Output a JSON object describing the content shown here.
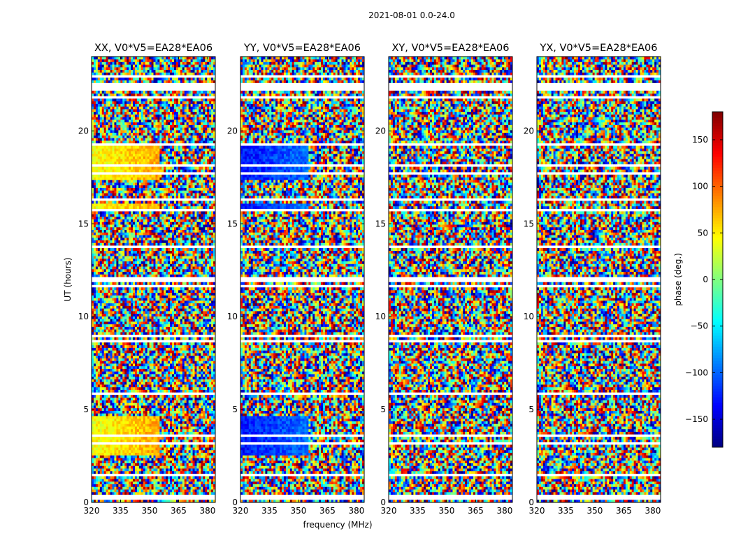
{
  "figure": {
    "suptitle": "2021-08-01 0.0-24.0",
    "xlabel": "frequency (MHz)",
    "ylabel": "UT (hours)",
    "colorbar_label": "phase (deg.)"
  },
  "chart_data": {
    "type": "heatmap",
    "colormap": "jet",
    "x_ticks": [
      320,
      335,
      350,
      365,
      380
    ],
    "y_ticks": [
      0,
      5,
      10,
      15,
      20
    ],
    "xlim": [
      320,
      384
    ],
    "ylim": [
      0,
      24
    ],
    "clim": [
      -180,
      180
    ],
    "colorbar_ticks": [
      -150,
      -100,
      -50,
      0,
      50,
      100,
      150
    ],
    "colorbar_tick_labels": [
      "−150",
      "−100",
      "−50",
      "0",
      "50",
      "100",
      "150"
    ],
    "gaps_hours": [
      0.2,
      0.4,
      1.45,
      3.2,
      3.55,
      5.85,
      8.65,
      9.0,
      11.65,
      12.0,
      13.8,
      15.8,
      16.3,
      17.7,
      18.2,
      19.25,
      21.8,
      22.2,
      22.45,
      23.0
    ],
    "panels": [
      {
        "title": "XX, V0*V5=EA28*EA06",
        "pol": "XX"
      },
      {
        "title": "YY, V0*V5=EA28*EA06",
        "pol": "YY"
      },
      {
        "title": "XY, V0*V5=EA28*EA06",
        "pol": "XY"
      },
      {
        "title": "YX, V0*V5=EA28*EA06",
        "pol": "YX"
      }
    ]
  }
}
